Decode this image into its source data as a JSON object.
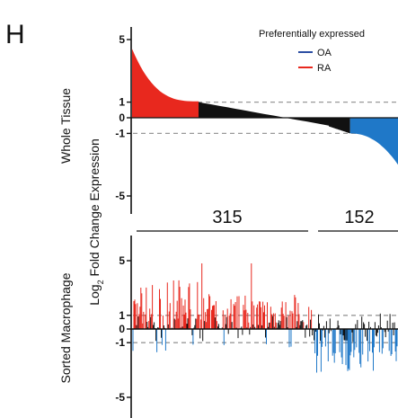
{
  "panel_label": "H",
  "shared_ylabel_main": "Log",
  "shared_ylabel_sub": "2",
  "shared_ylabel_rest": " Fold Change Expression",
  "legend": {
    "title": "Preferentially expressed",
    "items": [
      {
        "label": "OA",
        "color": "#2c4fa3"
      },
      {
        "label": "RA",
        "color": "#e8281e"
      }
    ]
  },
  "colors": {
    "ra": "#e8281e",
    "oa": "#1f78c8",
    "neutral": "#111111",
    "guide": "#999999"
  },
  "groups": {
    "left_count": "315",
    "right_count": "152",
    "split_fraction": 0.68
  },
  "chart_data": [
    {
      "type": "bar",
      "panel": "Whole Tissue",
      "ylabel": "Whole Tissue",
      "ylim": [
        -6,
        6
      ],
      "yticks": [
        {
          "value": 5,
          "label": "5"
        },
        {
          "value": 1,
          "label": "1"
        },
        {
          "value": 0,
          "label": "0"
        },
        {
          "value": -1,
          "label": "-1"
        },
        {
          "value": -5,
          "label": "-5"
        }
      ],
      "guides": [
        1,
        -1
      ],
      "sorted": true,
      "segments": [
        {
          "group": "RA",
          "fraction": 0.25,
          "start": 4.4,
          "end": 1.05
        },
        {
          "group": "neutral",
          "fraction": 0.49,
          "start": 1.0,
          "end": -0.5
        },
        {
          "group": "neutral",
          "fraction": 0.08,
          "start": -0.55,
          "end": -1.0
        },
        {
          "group": "OA",
          "fraction": 0.18,
          "start": -1.0,
          "end": -3.0
        }
      ]
    },
    {
      "type": "bar",
      "panel": "Sorted Macrophage",
      "ylabel": "Sorted Macrophage",
      "ylim": [
        -6,
        6
      ],
      "yticks": [
        {
          "value": 5,
          "label": "5"
        },
        {
          "value": 1,
          "label": "1"
        },
        {
          "value": 0,
          "label": "0"
        },
        {
          "value": -1,
          "label": "-1"
        },
        {
          "value": -5,
          "label": "-5"
        }
      ],
      "guides": [
        1,
        -1
      ],
      "sorted": false,
      "n_bars": 300,
      "value_range": [
        -3.5,
        5.0
      ]
    }
  ]
}
